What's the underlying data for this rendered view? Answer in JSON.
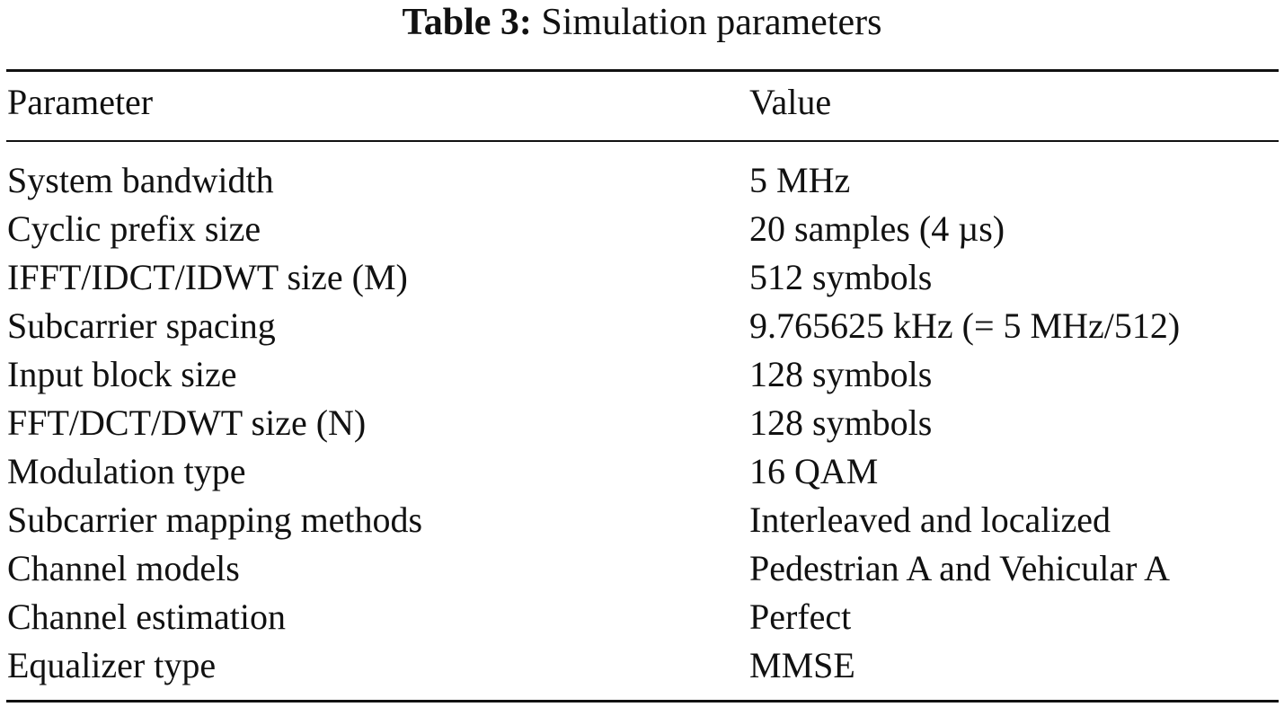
{
  "caption": {
    "label": "Table 3:",
    "title": "Simulation parameters"
  },
  "table": {
    "headers": {
      "parameter": "Parameter",
      "value": "Value"
    },
    "rows": [
      {
        "parameter": "System bandwidth",
        "value": "5 MHz"
      },
      {
        "parameter": "Cyclic prefix size",
        "value": "20 samples (4 µs)"
      },
      {
        "parameter": "IFFT/IDCT/IDWT size (M)",
        "value": "512 symbols"
      },
      {
        "parameter": "Subcarrier spacing",
        "value": "9.765625 kHz (= 5 MHz/512)"
      },
      {
        "parameter": "Input block size",
        "value": "128 symbols"
      },
      {
        "parameter": "FFT/DCT/DWT size (N)",
        "value": "128 symbols"
      },
      {
        "parameter": "Modulation type",
        "value": "16 QAM"
      },
      {
        "parameter": "Subcarrier mapping methods",
        "value": "Interleaved and localized"
      },
      {
        "parameter": "Channel models",
        "value": "Pedestrian A and Vehicular A"
      },
      {
        "parameter": "Channel estimation",
        "value": "Perfect"
      },
      {
        "parameter": "Equalizer type",
        "value": "MMSE"
      }
    ]
  }
}
